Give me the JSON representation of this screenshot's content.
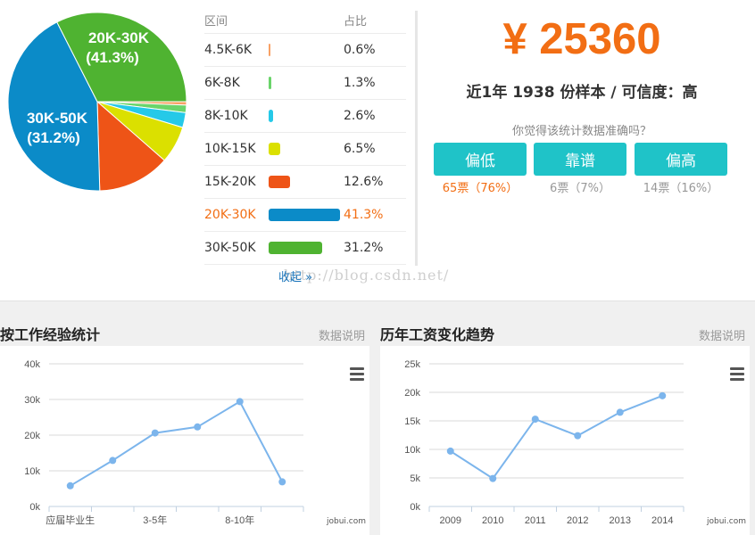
{
  "pie": {
    "labels": [
      {
        "line1": "20K-30K",
        "line2": "(41.3%)"
      },
      {
        "line1": "30K-50K",
        "line2": "(31.2%)"
      }
    ]
  },
  "ranges": {
    "header_range": "区间",
    "header_pct": "占比",
    "rows": [
      {
        "range": "4.5K-6K",
        "pct": "0.6%",
        "value": 0.6,
        "color": "#f8a165",
        "active": false
      },
      {
        "range": "6K-8K",
        "pct": "1.3%",
        "value": 1.3,
        "color": "#6ad46a",
        "active": false
      },
      {
        "range": "8K-10K",
        "pct": "2.6%",
        "value": 2.6,
        "color": "#25c9e8",
        "active": false
      },
      {
        "range": "10K-15K",
        "pct": "6.5%",
        "value": 6.5,
        "color": "#dbe000",
        "active": false
      },
      {
        "range": "15K-20K",
        "pct": "12.6%",
        "value": 12.6,
        "color": "#ee5417",
        "active": false
      },
      {
        "range": "20K-30K",
        "pct": "41.3%",
        "value": 41.3,
        "color": "#0b8bc8",
        "active": true
      },
      {
        "range": "30K-50K",
        "pct": "31.2%",
        "value": 31.2,
        "color": "#4fb331",
        "active": false
      }
    ],
    "collapse_label": "收起 »"
  },
  "watermark": "http://blog.csdn.net/",
  "summary": {
    "salary": "¥ 25360",
    "sample_line": "近1年 1938 份样本 / 可信度：高",
    "question": "你觉得该统计数据准确吗？",
    "votes": [
      {
        "label": "偏低",
        "count": "65票（76%）",
        "hot": true
      },
      {
        "label": "靠谱",
        "count": "6票（7%）",
        "hot": false
      },
      {
        "label": "偏高",
        "count": "14票（16%）",
        "hot": false
      }
    ]
  },
  "experience": {
    "title": "按工作经验统计",
    "note": "数据说明",
    "credit": "jobui.com"
  },
  "history": {
    "title": "历年工资变化趋势",
    "note": "数据说明",
    "credit": "jobui.com"
  },
  "chart_data": [
    {
      "type": "line",
      "title": "按工作经验统计",
      "categories": [
        "应届毕业生",
        "",
        "3-5年",
        "",
        "8-10年",
        ""
      ],
      "values": [
        5800,
        12900,
        20600,
        22300,
        29400,
        6900
      ],
      "y_ticks": [
        "0k",
        "10k",
        "20k",
        "30k",
        "40k"
      ],
      "ylim": [
        0,
        40000
      ],
      "grid": true,
      "color": "#7cb5ec"
    },
    {
      "type": "line",
      "title": "历年工资变化趋势",
      "categories": [
        "2009",
        "2010",
        "2011",
        "2012",
        "2013",
        "2014"
      ],
      "values": [
        9700,
        4900,
        15300,
        12400,
        16500,
        19400
      ],
      "y_ticks": [
        "0k",
        "5k",
        "10k",
        "15k",
        "20k",
        "25k"
      ],
      "ylim": [
        0,
        25000
      ],
      "grid": true,
      "color": "#7cb5ec"
    }
  ]
}
